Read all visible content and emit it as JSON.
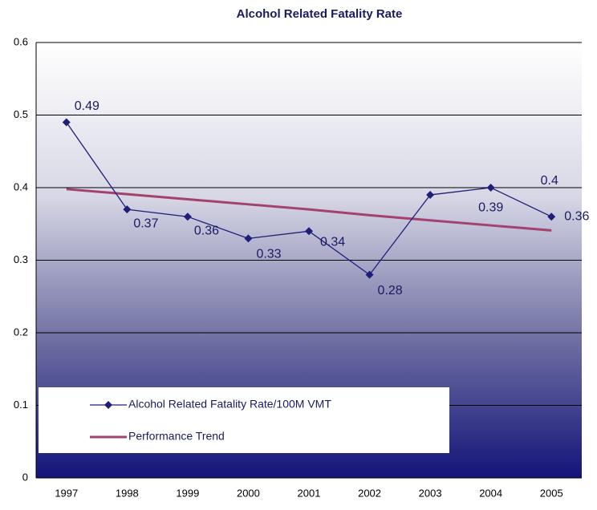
{
  "chart_data": {
    "type": "line",
    "title": "Alcohol Related Fatality Rate",
    "categories": [
      "1997",
      "1998",
      "1999",
      "2000",
      "2001",
      "2002",
      "2003",
      "2004",
      "2005"
    ],
    "series": [
      {
        "name": "Alcohol Related Fatality Rate/100M VMT",
        "color": "#1f1f7a",
        "values": [
          0.49,
          0.37,
          0.36,
          0.33,
          0.34,
          0.28,
          0.39,
          0.4,
          0.36
        ],
        "data_labels": true
      },
      {
        "name": "Performance Trend",
        "color": "#a3426e",
        "values": [
          0.398,
          0.391,
          0.384,
          0.377,
          0.37,
          0.362,
          0.355,
          0.348,
          0.341
        ],
        "data_labels": false
      }
    ],
    "ylim": [
      0,
      0.6
    ],
    "yticks": [
      0,
      0.1,
      0.2,
      0.3,
      0.4,
      0.5,
      0.6
    ],
    "grid": true,
    "legend": "lower left"
  }
}
